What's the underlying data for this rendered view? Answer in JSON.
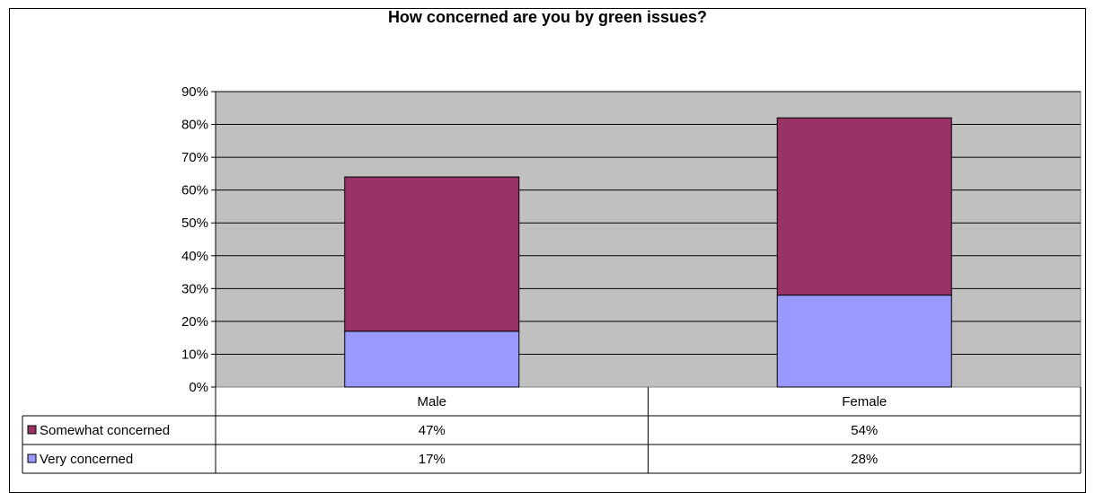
{
  "chart_data": {
    "type": "bar",
    "stacked": true,
    "title": "How concerned are you by green issues?",
    "categories": [
      "Male",
      "Female"
    ],
    "series": [
      {
        "name": "Very concerned",
        "values": [
          17,
          28
        ],
        "labels": [
          "17%",
          "28%"
        ],
        "color": "#9999ff"
      },
      {
        "name": "Somewhat concerned",
        "values": [
          47,
          54
        ],
        "labels": [
          "47%",
          "54%"
        ],
        "color": "#993366"
      }
    ],
    "ylim": [
      0,
      90
    ],
    "yticks": [
      "0%",
      "10%",
      "20%",
      "30%",
      "40%",
      "50%",
      "60%",
      "70%",
      "80%",
      "90%"
    ],
    "grid": true,
    "plot_background": "#c0c0c0",
    "legend": "data-table"
  }
}
